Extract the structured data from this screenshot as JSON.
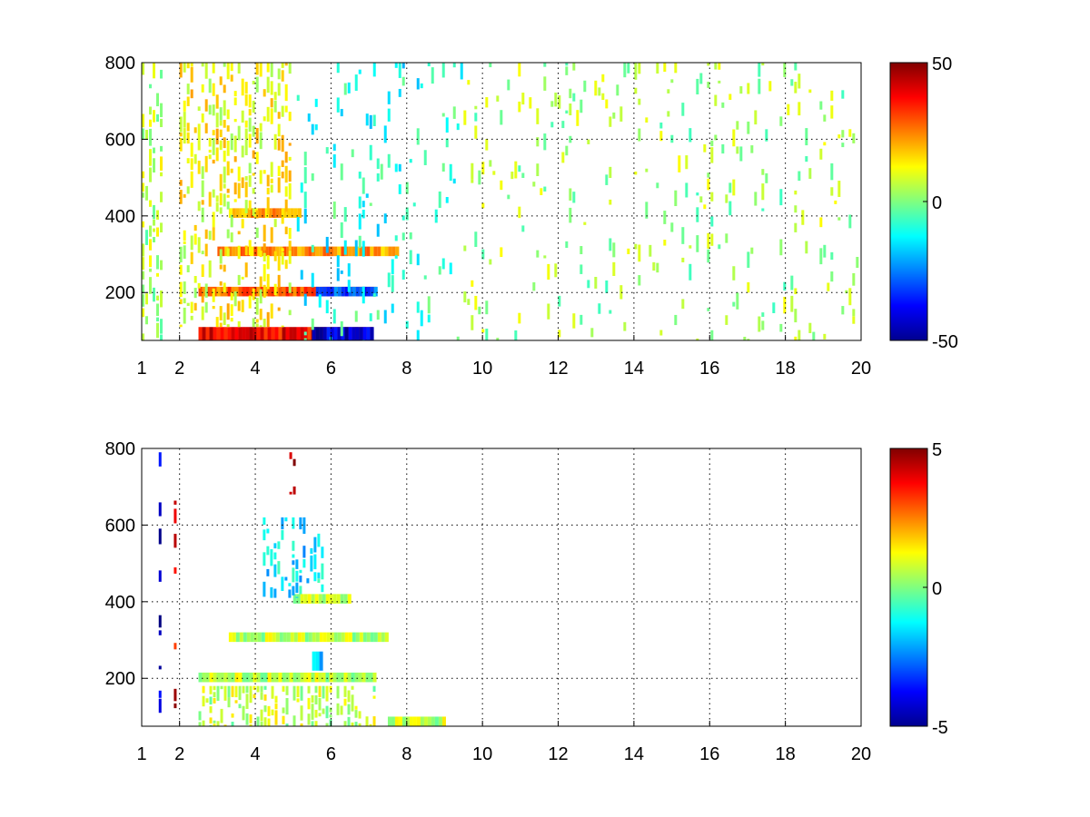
{
  "chart_data": [
    {
      "type": "heatmap",
      "title": "",
      "xlabel": "",
      "ylabel": "",
      "xlim": [
        1,
        20
      ],
      "ylim": [
        75,
        800
      ],
      "x_ticks": [
        "1",
        "2",
        "4",
        "6",
        "8",
        "10",
        "12",
        "14",
        "16",
        "18",
        "20"
      ],
      "y_ticks": [
        "200",
        "400",
        "600",
        "800"
      ],
      "grid": true,
      "colorbar": {
        "min": -50,
        "max": 50,
        "ticks": [
          "50",
          "0",
          "-50"
        ],
        "colormap": "jet"
      },
      "features": [
        {
          "x": [
            1.0,
            1.6
          ],
          "y": [
            75,
            800
          ],
          "value": 5,
          "note": "scattered vertical streaks"
        },
        {
          "x": [
            2.5,
            7.1
          ],
          "y": [
            75,
            110
          ],
          "value": 38
        },
        {
          "x": [
            5.5,
            7.1
          ],
          "y": [
            75,
            110
          ],
          "value": -42
        },
        {
          "x": [
            2.5,
            7.2
          ],
          "y": [
            190,
            215
          ],
          "value": 28
        },
        {
          "x": [
            5.6,
            7.2
          ],
          "y": [
            190,
            215
          ],
          "value": -30
        },
        {
          "x": [
            3.0,
            7.8
          ],
          "y": [
            295,
            320
          ],
          "value": 22
        },
        {
          "x": [
            3.3,
            5.2
          ],
          "y": [
            395,
            420
          ],
          "value": 20
        },
        {
          "x": [
            2.0,
            5.0
          ],
          "y": [
            110,
            800
          ],
          "value": 12,
          "note": "dense streaks"
        },
        {
          "x": [
            5.0,
            9.5
          ],
          "y": [
            75,
            800
          ],
          "value": -10,
          "note": "sparse streaks"
        },
        {
          "x": [
            9.5,
            20.0
          ],
          "y": [
            75,
            800
          ],
          "value": 3,
          "note": "sparse speckle"
        }
      ]
    },
    {
      "type": "heatmap",
      "title": "",
      "xlabel": "",
      "ylabel": "",
      "xlim": [
        1,
        20
      ],
      "ylim": [
        75,
        800
      ],
      "x_ticks": [
        "1",
        "2",
        "4",
        "6",
        "8",
        "10",
        "12",
        "14",
        "16",
        "18",
        "20"
      ],
      "y_ticks": [
        "200",
        "400",
        "600",
        "800"
      ],
      "grid": true,
      "colorbar": {
        "min": -5,
        "max": 5,
        "ticks": [
          "5",
          "0",
          "-5"
        ],
        "colormap": "jet"
      },
      "features": [
        {
          "x": [
            1.45,
            1.5
          ],
          "y": [
            110,
            790
          ],
          "value": -4.5,
          "note": "dark line"
        },
        {
          "x": [
            1.85,
            1.9
          ],
          "y": [
            110,
            760
          ],
          "value": 4.0,
          "note": "dark line"
        },
        {
          "x": [
            2.5,
            7.2
          ],
          "y": [
            75,
            180
          ],
          "value": 0.6
        },
        {
          "x": [
            7.5,
            9.0
          ],
          "y": [
            75,
            100
          ],
          "value": 0.6
        },
        {
          "x": [
            2.5,
            7.2
          ],
          "y": [
            190,
            215
          ],
          "value": 0.6
        },
        {
          "x": [
            3.3,
            7.5
          ],
          "y": [
            295,
            320
          ],
          "value": 0.6
        },
        {
          "x": [
            5.0,
            6.5
          ],
          "y": [
            395,
            420
          ],
          "value": 0.6
        },
        {
          "x": [
            4.2,
            5.8
          ],
          "y": [
            410,
            620
          ],
          "value": -1.5,
          "note": "curved streak"
        },
        {
          "x": [
            5.5,
            5.8
          ],
          "y": [
            220,
            270
          ],
          "value": -2.0
        },
        {
          "x": [
            4.9,
            5.1
          ],
          "y": [
            680,
            790
          ],
          "value": 4.5
        }
      ]
    }
  ]
}
